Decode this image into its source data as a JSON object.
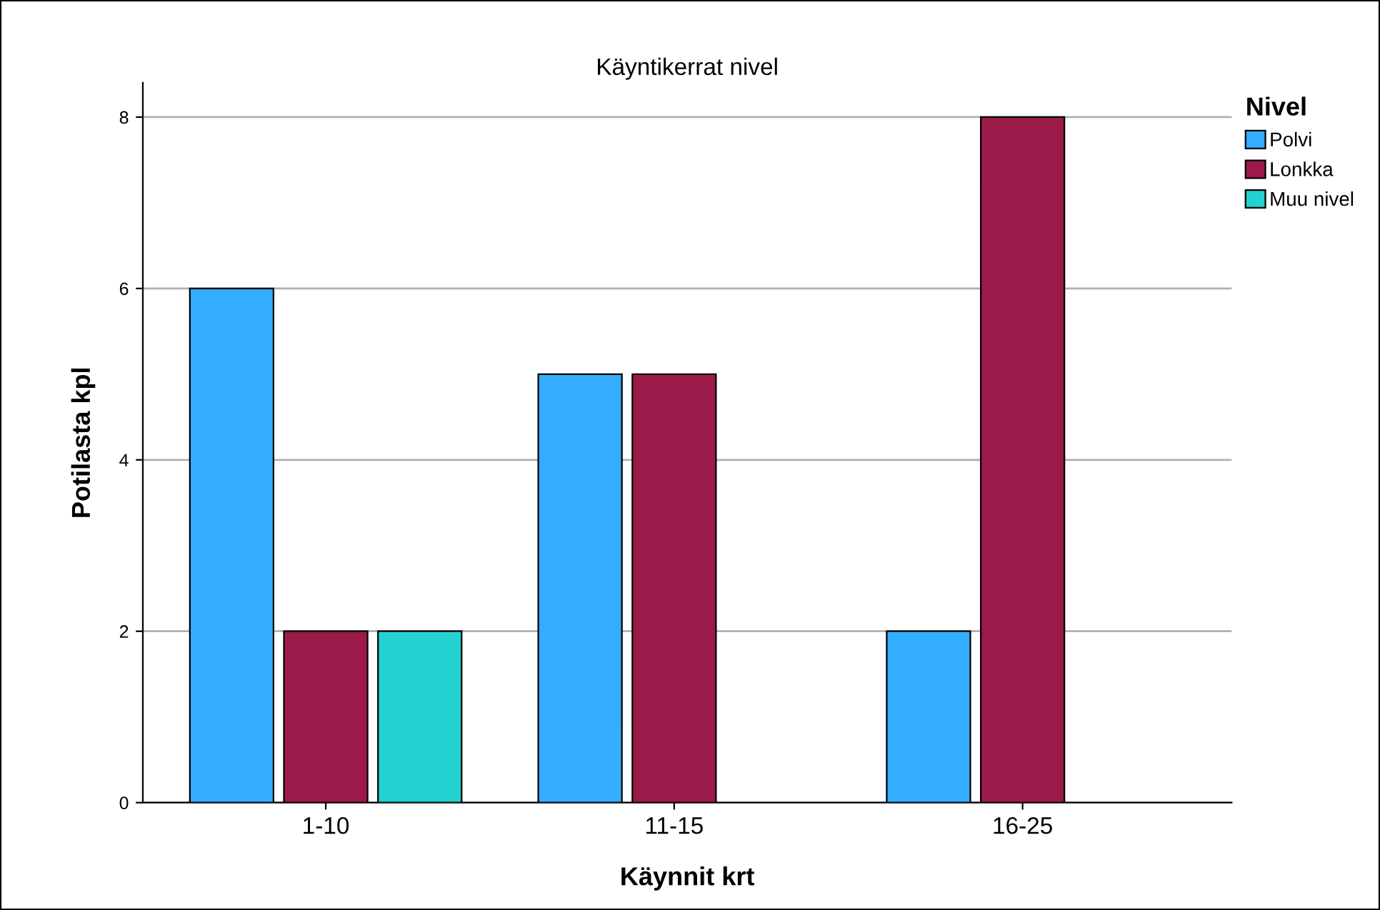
{
  "chart_data": {
    "type": "bar",
    "title": "Käyntikerrat nivel",
    "xlabel": "Käynnit krt",
    "ylabel": "Potilasta kpl",
    "legend_title": "Nivel",
    "categories": [
      "1-10",
      "11-15",
      "16-25"
    ],
    "series": [
      {
        "name": "Polvi",
        "color": "#33adff",
        "values": [
          6,
          5,
          2
        ]
      },
      {
        "name": "Lonkka",
        "color": "#9c1a4a",
        "values": [
          2,
          5,
          8
        ]
      },
      {
        "name": "Muu nivel",
        "color": "#23d2d0",
        "values": [
          2,
          null,
          null
        ]
      }
    ],
    "ylim": [
      0,
      8.4
    ],
    "yticks": [
      0,
      2,
      4,
      6,
      8
    ],
    "grid": "y",
    "legend": "top right"
  }
}
